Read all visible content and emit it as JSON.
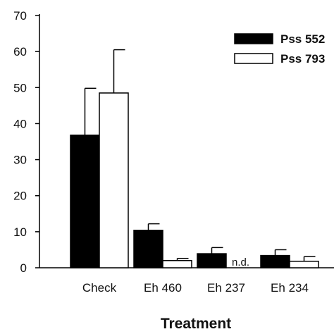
{
  "chart_data": {
    "type": "bar",
    "title": "",
    "xlabel": "Treatment",
    "ylabel": "",
    "ylim": [
      0,
      70
    ],
    "yticks": [
      0,
      10,
      20,
      30,
      40,
      50,
      60,
      70
    ],
    "grid": false,
    "legend_placement": "top-right",
    "categories": [
      "Check",
      "Eh 460",
      "Eh 237",
      "Eh 234"
    ],
    "series": [
      {
        "name": "Pss 552",
        "color": "#000000",
        "values": [
          36.8,
          10.4,
          3.9,
          3.4
        ],
        "errors": [
          13.0,
          1.8,
          1.7,
          1.6
        ]
      },
      {
        "name": "Pss 793",
        "color": "#ffffff",
        "values": [
          48.5,
          2.0,
          0,
          1.8
        ],
        "errors": [
          12.0,
          0.6,
          0,
          1.3
        ]
      }
    ],
    "annotations": [
      {
        "text": "n.d.",
        "category": "Eh 237",
        "series": "Pss 793"
      }
    ]
  }
}
